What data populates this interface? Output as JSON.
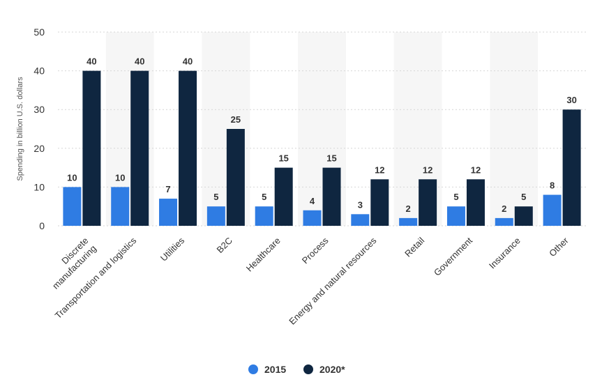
{
  "chart_data": {
    "type": "bar",
    "ylabel": "Spending in billion U.S. dollars",
    "xlabel": "",
    "ylim": [
      0,
      50
    ],
    "yticks": [
      0,
      10,
      20,
      30,
      40,
      50
    ],
    "grid": true,
    "legend_position": "bottom-center",
    "categories": [
      "Discrete manufacturing",
      "Transportation and logistics",
      "Utilities",
      "B2C",
      "Healthcare",
      "Process",
      "Energy and natural resources",
      "Retail",
      "Government",
      "Insurance",
      "Other"
    ],
    "category_label_lines": [
      [
        "Discrete",
        "manufacturing"
      ],
      [
        "Transportation and logistics"
      ],
      [
        "Utilities"
      ],
      [
        "B2C"
      ],
      [
        "Healthcare"
      ],
      [
        "Process"
      ],
      [
        "Energy and natural resources"
      ],
      [
        "Retail"
      ],
      [
        "Government"
      ],
      [
        "Insurance"
      ],
      [
        "Other"
      ]
    ],
    "series": [
      {
        "name": "2015",
        "color": "#2f7ce3",
        "values": [
          10,
          10,
          7,
          5,
          5,
          4,
          3,
          2,
          5,
          2,
          8
        ]
      },
      {
        "name": "2020*",
        "color": "#0f2640",
        "values": [
          40,
          40,
          40,
          25,
          15,
          15,
          12,
          12,
          12,
          5,
          30
        ]
      }
    ]
  }
}
